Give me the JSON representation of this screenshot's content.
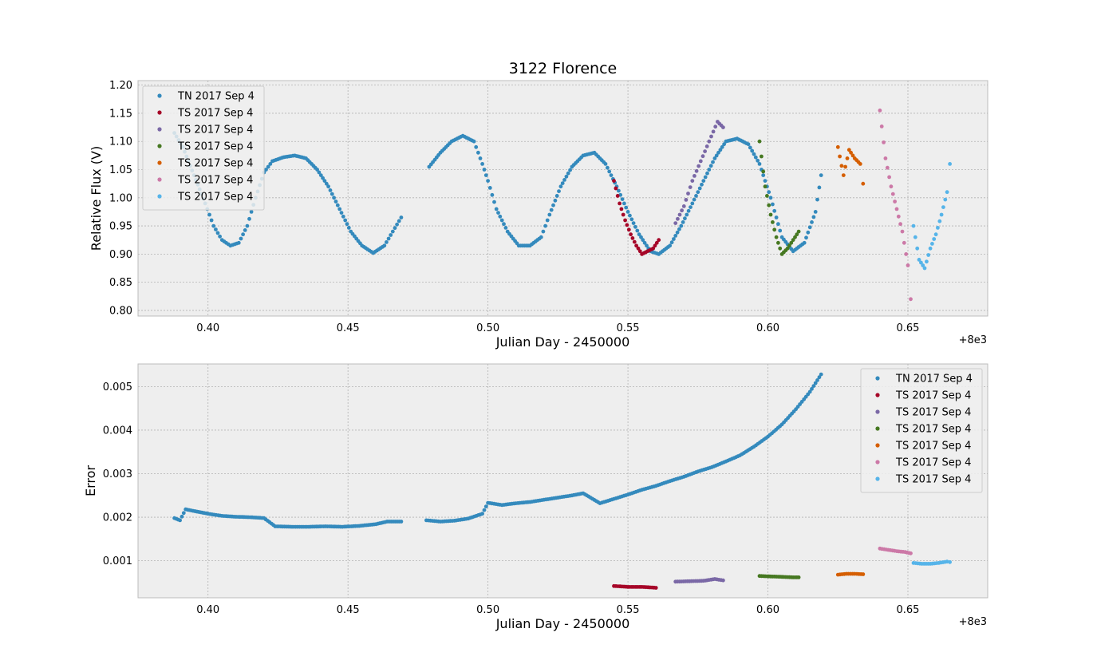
{
  "chart_data": [
    {
      "type": "scatter",
      "title": "3122 Florence",
      "xlabel": "Julian Day  - 2450000",
      "ylabel": "Relative Flux (V)",
      "offset_label": "+8e3",
      "xlim": [
        8000.375,
        8000.6785
      ],
      "ylim": [
        0.79,
        1.208
      ],
      "x_ticks": [
        8000.4,
        8000.45,
        8000.5,
        8000.55,
        8000.6,
        8000.65
      ],
      "x_tick_labels": [
        "0.40",
        "0.45",
        "0.50",
        "0.55",
        "0.60",
        "0.65"
      ],
      "y_ticks": [
        0.8,
        0.85,
        0.9,
        0.95,
        1.0,
        1.05,
        1.1,
        1.15,
        1.2
      ],
      "y_tick_labels": [
        "0.80",
        "0.85",
        "0.90",
        "0.95",
        "1.00",
        "1.05",
        "1.10",
        "1.15",
        "1.20"
      ],
      "grid": true,
      "legend_position": "top-left",
      "series": [
        {
          "name": "TN 2017 Sep 4",
          "color": "#348ABD",
          "x": [
            8000.388,
            8000.391,
            8000.395,
            8000.399,
            8000.402,
            8000.405,
            8000.408,
            8000.411,
            8000.414,
            8000.417,
            8000.42,
            8000.423,
            8000.427,
            8000.431,
            8000.435,
            8000.439,
            8000.443,
            8000.447,
            8000.451,
            8000.455,
            8000.459,
            8000.463,
            8000.466,
            8000.469,
            8000.479,
            8000.483,
            8000.487,
            8000.491,
            8000.495,
            8000.498,
            8000.5,
            8000.503,
            8000.507,
            8000.511,
            8000.515,
            8000.519,
            8000.522,
            8000.526,
            8000.53,
            8000.534,
            8000.538,
            8000.542,
            8000.546,
            8000.55,
            8000.554,
            8000.558,
            8000.561,
            8000.565,
            8000.569,
            8000.573,
            8000.577,
            8000.581,
            8000.585,
            8000.589,
            8000.593,
            8000.597,
            8000.601,
            8000.605,
            8000.609,
            8000.613,
            8000.617,
            8000.619
          ],
          "y": [
            1.115,
            1.09,
            1.04,
            0.99,
            0.95,
            0.925,
            0.915,
            0.92,
            0.95,
            1.0,
            1.045,
            1.065,
            1.072,
            1.075,
            1.07,
            1.05,
            1.02,
            0.98,
            0.94,
            0.915,
            0.902,
            0.915,
            0.94,
            0.965,
            1.055,
            1.08,
            1.1,
            1.11,
            1.1,
            1.06,
            1.03,
            0.98,
            0.94,
            0.915,
            0.915,
            0.93,
            0.97,
            1.02,
            1.055,
            1.075,
            1.08,
            1.06,
            1.02,
            0.975,
            0.935,
            0.905,
            0.9,
            0.915,
            0.95,
            0.99,
            1.03,
            1.07,
            1.1,
            1.105,
            1.095,
            1.06,
            1.0,
            0.93,
            0.905,
            0.92,
            0.975,
            1.04
          ]
        },
        {
          "name": "TS 2017 Sep 4",
          "color": "#A60628",
          "x": [
            8000.545,
            8000.547,
            8000.549,
            8000.551,
            8000.553,
            8000.555,
            8000.557,
            8000.559,
            8000.561
          ],
          "y": [
            1.03,
            0.99,
            0.96,
            0.935,
            0.915,
            0.9,
            0.905,
            0.91,
            0.925
          ]
        },
        {
          "name": "TS 2017 Sep 4",
          "color": "#7A68A6",
          "x": [
            8000.567,
            8000.57,
            8000.573,
            8000.576,
            8000.579,
            8000.582,
            8000.584
          ],
          "y": [
            0.955,
            0.985,
            1.03,
            1.065,
            1.1,
            1.135,
            1.125
          ]
        },
        {
          "name": "TS 2017 Sep 4",
          "color": "#467821",
          "x": [
            8000.597,
            8000.599,
            8000.601,
            8000.603,
            8000.605,
            8000.607,
            8000.609,
            8000.611
          ],
          "y": [
            1.1,
            1.02,
            0.97,
            0.93,
            0.9,
            0.91,
            0.925,
            0.94
          ]
        },
        {
          "name": "TS 2017 Sep 4",
          "color": "#D55E00",
          "x": [
            8000.625,
            8000.627,
            8000.629,
            8000.631,
            8000.633,
            8000.634
          ],
          "y": [
            1.09,
            1.04,
            1.085,
            1.07,
            1.06,
            1.025
          ]
        },
        {
          "name": "TS 2017 Sep 4",
          "color": "#CC79A7",
          "x": [
            8000.64,
            8000.642,
            8000.644,
            8000.646,
            8000.648,
            8000.65,
            8000.651
          ],
          "y": [
            1.155,
            1.07,
            1.02,
            0.98,
            0.94,
            0.88,
            0.82
          ]
        },
        {
          "name": "TS 2017 Sep 4",
          "color": "#56B4E9",
          "x": [
            8000.652,
            8000.654,
            8000.656,
            8000.658,
            8000.66,
            8000.662,
            8000.664,
            8000.665
          ],
          "y": [
            0.95,
            0.89,
            0.875,
            0.91,
            0.935,
            0.97,
            1.01,
            1.06
          ]
        }
      ]
    },
    {
      "type": "scatter",
      "title": "",
      "xlabel": "Julian Day - 2450000",
      "ylabel": "Error",
      "offset_label": "+8e3",
      "xlim": [
        8000.375,
        8000.6785
      ],
      "ylim": [
        0.00015,
        0.00552
      ],
      "x_ticks": [
        8000.4,
        8000.45,
        8000.5,
        8000.55,
        8000.6,
        8000.65
      ],
      "x_tick_labels": [
        "0.40",
        "0.45",
        "0.50",
        "0.55",
        "0.60",
        "0.65"
      ],
      "y_ticks": [
        0.001,
        0.002,
        0.003,
        0.004,
        0.005
      ],
      "y_tick_labels": [
        "0.001",
        "0.002",
        "0.003",
        "0.004",
        "0.005"
      ],
      "grid": true,
      "legend_position": "top-right",
      "series": [
        {
          "name": "TN 2017 Sep 4",
          "color": "#348ABD",
          "x": [
            8000.388,
            8000.39,
            8000.392,
            8000.396,
            8000.4,
            8000.405,
            8000.41,
            8000.415,
            8000.42,
            8000.424,
            8000.43,
            8000.436,
            8000.442,
            8000.448,
            8000.454,
            8000.46,
            8000.464,
            8000.469,
            8000.478,
            8000.483,
            8000.488,
            8000.493,
            8000.498,
            8000.5,
            8000.505,
            8000.51,
            8000.515,
            8000.52,
            8000.525,
            8000.53,
            8000.534,
            8000.54,
            8000.545,
            8000.55,
            8000.555,
            8000.56,
            8000.565,
            8000.57,
            8000.575,
            8000.58,
            8000.585,
            8000.59,
            8000.595,
            8000.6,
            8000.605,
            8000.61,
            8000.615,
            8000.619
          ],
          "y": [
            0.00198,
            0.00193,
            0.00218,
            0.00213,
            0.00208,
            0.00203,
            0.00201,
            0.002,
            0.00198,
            0.00179,
            0.00178,
            0.00178,
            0.00179,
            0.00178,
            0.0018,
            0.00184,
            0.0019,
            0.0019,
            0.00193,
            0.0019,
            0.00192,
            0.00197,
            0.00208,
            0.00233,
            0.00228,
            0.00232,
            0.00235,
            0.0024,
            0.00245,
            0.0025,
            0.00255,
            0.00232,
            0.00242,
            0.00252,
            0.00263,
            0.00272,
            0.00283,
            0.00293,
            0.00305,
            0.00315,
            0.00328,
            0.00342,
            0.00362,
            0.00385,
            0.00413,
            0.00448,
            0.00488,
            0.00528
          ]
        },
        {
          "name": "TS 2017 Sep 4",
          "color": "#A60628",
          "x": [
            8000.545,
            8000.55,
            8000.555,
            8000.56
          ],
          "y": [
            0.00042,
            0.0004,
            0.0004,
            0.00038
          ]
        },
        {
          "name": "TS 2017 Sep 4",
          "color": "#7A68A6",
          "x": [
            8000.567,
            8000.572,
            8000.577,
            8000.581,
            8000.584
          ],
          "y": [
            0.00052,
            0.00053,
            0.00054,
            0.00058,
            0.00055
          ]
        },
        {
          "name": "TS 2017 Sep 4",
          "color": "#467821",
          "x": [
            8000.597,
            8000.601,
            8000.605,
            8000.609,
            8000.611
          ],
          "y": [
            0.00065,
            0.00064,
            0.00063,
            0.00062,
            0.00062
          ]
        },
        {
          "name": "TS 2017 Sep 4",
          "color": "#D55E00",
          "x": [
            8000.625,
            8000.628,
            8000.631,
            8000.634
          ],
          "y": [
            0.00068,
            0.0007,
            0.0007,
            0.00069
          ]
        },
        {
          "name": "TS 2017 Sep 4",
          "color": "#CC79A7",
          "x": [
            8000.64,
            8000.643,
            8000.646,
            8000.649,
            8000.651
          ],
          "y": [
            0.00128,
            0.00125,
            0.00122,
            0.0012,
            0.00117
          ]
        },
        {
          "name": "TS 2017 Sep 4",
          "color": "#56B4E9",
          "x": [
            8000.652,
            8000.655,
            8000.658,
            8000.661,
            8000.664,
            8000.665
          ],
          "y": [
            0.00095,
            0.00093,
            0.00093,
            0.00095,
            0.00098,
            0.00097
          ]
        }
      ]
    }
  ]
}
